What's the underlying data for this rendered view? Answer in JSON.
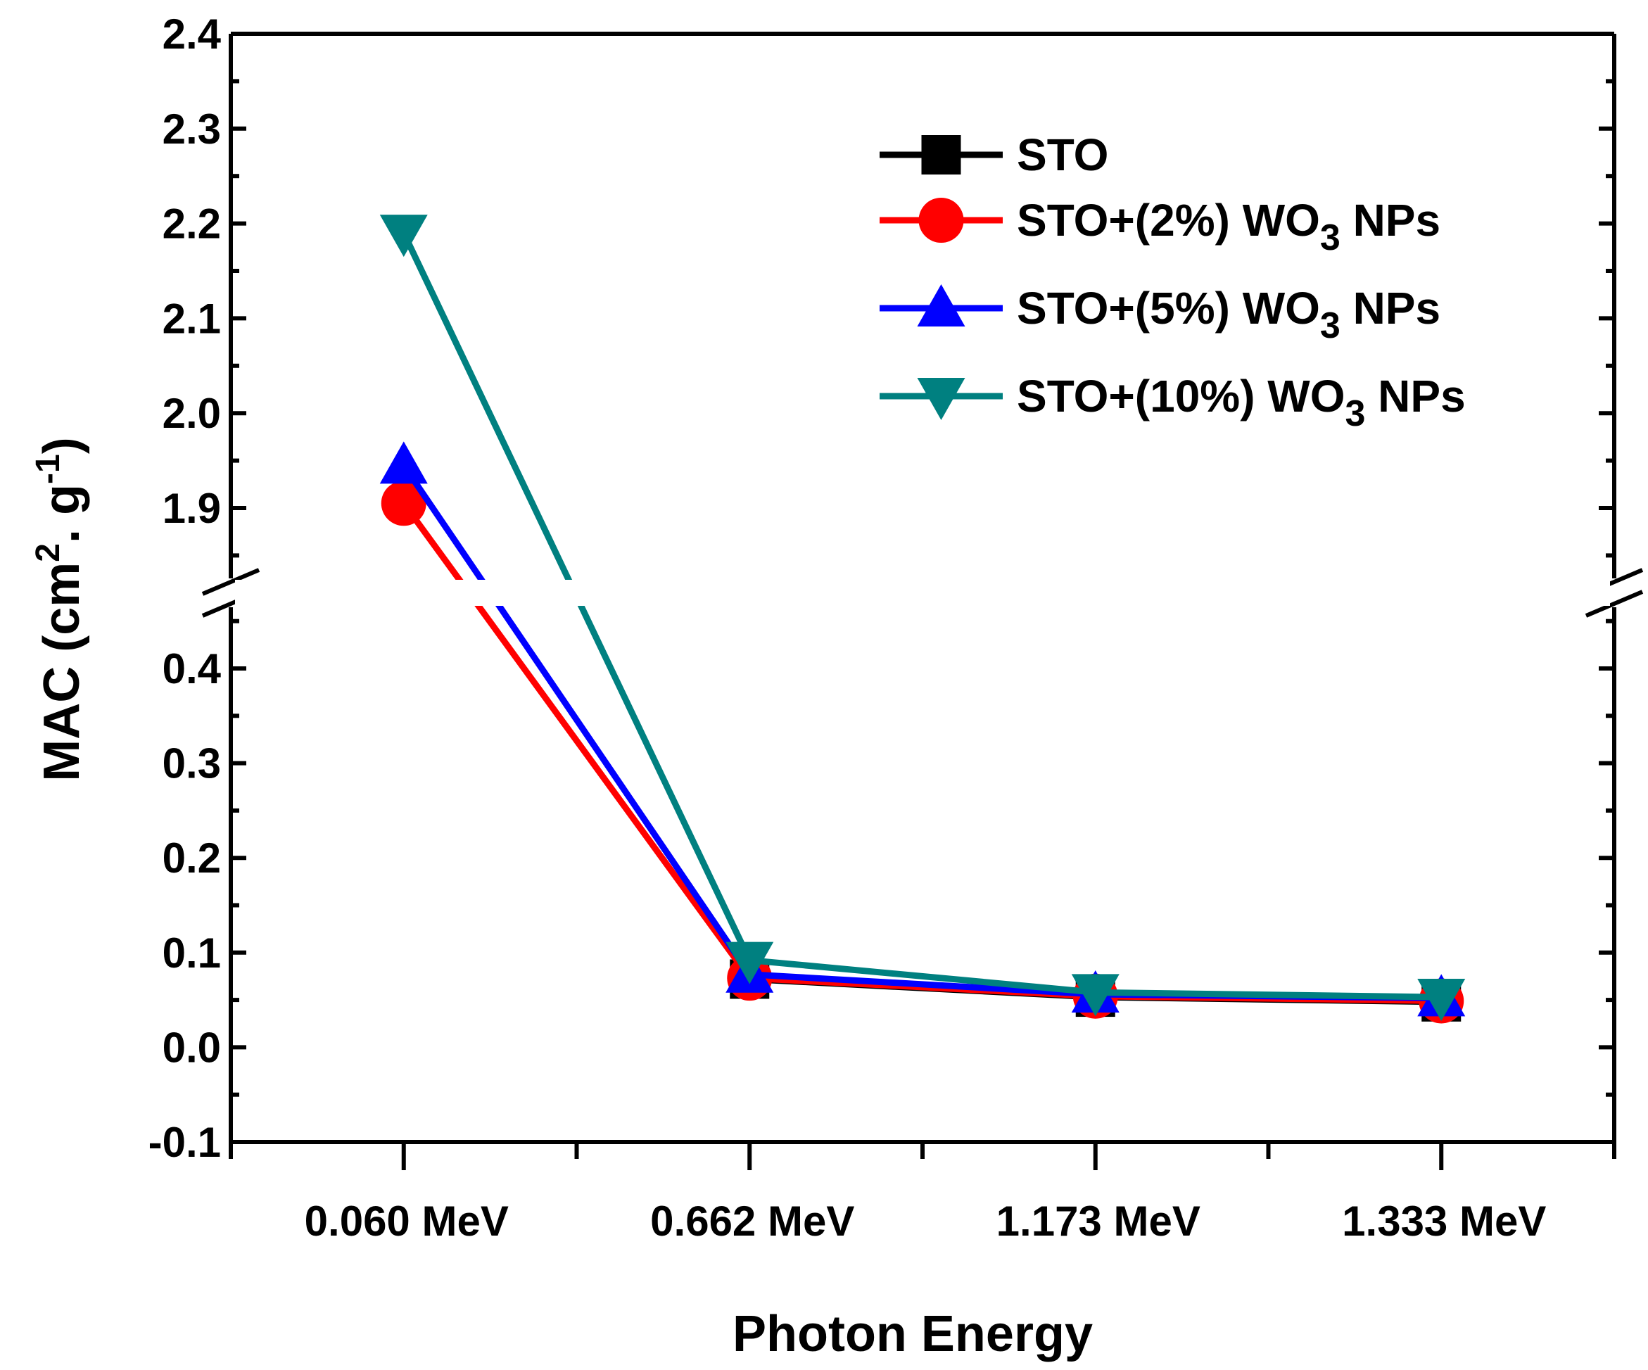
{
  "chart_data": {
    "type": "line",
    "title": "",
    "xlabel": "Photon Energy",
    "ylabel": {
      "main": "MAC (cm",
      "sup1": "2",
      "mid": ". g",
      "sup2": "-1",
      "end": ")"
    },
    "categories": [
      "0.060 MeV",
      "0.662 MeV",
      "1.173 MeV",
      "1.333 MeV"
    ],
    "y_lower_range": [
      -0.1,
      0.45
    ],
    "y_upper_range": [
      1.82,
      2.4
    ],
    "y_ticks_lower": [
      "-0.1",
      "0.0",
      "0.1",
      "0.2",
      "0.3",
      "0.4"
    ],
    "y_ticks_upper": [
      "1.9",
      "2.0",
      "2.1",
      "2.2",
      "2.3",
      "2.4"
    ],
    "axis_break": true,
    "legend_position": "top-right",
    "series": [
      {
        "name": "STO",
        "name_sub": "",
        "name_tail": "",
        "color": "#000000",
        "marker": "square",
        "values": [
          null,
          0.072,
          0.053,
          0.048
        ]
      },
      {
        "name": "STO+(2%) WO",
        "name_sub": "3",
        "name_tail": " NPs",
        "color": "#ff0000",
        "marker": "circle",
        "values": [
          1.905,
          0.073,
          0.054,
          0.049
        ]
      },
      {
        "name": "STO+(5%) WO",
        "name_sub": "3",
        "name_tail": " NPs",
        "color": "#0000ff",
        "marker": "triangle-up",
        "values": [
          1.945,
          0.077,
          0.056,
          0.052
        ]
      },
      {
        "name": "STO+(10%) WO",
        "name_sub": "3",
        "name_tail": " NPs",
        "color": "#008080",
        "marker": "triangle-down",
        "values": [
          2.19,
          0.092,
          0.058,
          0.053
        ]
      }
    ]
  }
}
